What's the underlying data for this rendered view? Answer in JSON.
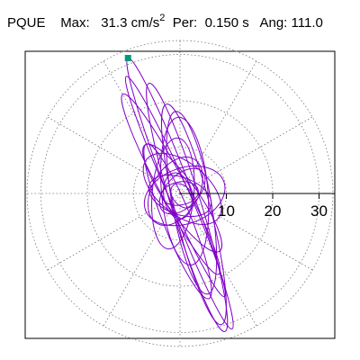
{
  "header": {
    "station": "PQUE",
    "max_label": "Max:",
    "max_value": "31.3 cm/s",
    "max_exp": "2",
    "per_label": "Per:",
    "per_value": "0.150 s",
    "ang_label": "Ang:",
    "ang_value": "111.0"
  },
  "chart_data": {
    "type": "polar-particle-motion",
    "title": "",
    "units": "cm/s²",
    "radial_ticks": [
      10,
      20,
      30
    ],
    "radial_max": 33,
    "rings": [
      10,
      20,
      30,
      33
    ],
    "spokes_every_deg": 30,
    "max_direction_marker": {
      "color": "#009a7a"
    },
    "series": [
      {
        "color": "#8000c8",
        "ellipses": [
          {
            "a": 31.3,
            "b": 2.6,
            "angle_deg": 111,
            "cx": 0,
            "cy": 0
          },
          {
            "a": 28.0,
            "b": 3.2,
            "angle_deg": 107,
            "cx": 1.5,
            "cy": -3.0
          },
          {
            "a": 26.0,
            "b": 2.2,
            "angle_deg": 114,
            "cx": -1.0,
            "cy": 1.5
          },
          {
            "a": 24.5,
            "b": 3.8,
            "angle_deg": 104,
            "cx": 3.0,
            "cy": -4.5
          },
          {
            "a": 22.0,
            "b": 2.8,
            "angle_deg": 118,
            "cx": -2.0,
            "cy": 2.0
          },
          {
            "a": 20.0,
            "b": 4.2,
            "angle_deg": 100,
            "cx": 2.5,
            "cy": -2.0
          },
          {
            "a": 18.0,
            "b": 3.0,
            "angle_deg": 112,
            "cx": -0.5,
            "cy": -6.0
          },
          {
            "a": 16.0,
            "b": 5.0,
            "angle_deg": 95,
            "cx": 1.0,
            "cy": 0.5
          },
          {
            "a": 14.0,
            "b": 3.5,
            "angle_deg": 125,
            "cx": 0.5,
            "cy": -1.0
          },
          {
            "a": 12.0,
            "b": 4.5,
            "angle_deg": 85,
            "cx": -1.5,
            "cy": 0.0
          },
          {
            "a": 10.0,
            "b": 5.5,
            "angle_deg": 140,
            "cx": 0.5,
            "cy": 1.0
          },
          {
            "a": 9.0,
            "b": 6.0,
            "angle_deg": 20,
            "cx": 1.0,
            "cy": -0.5
          },
          {
            "a": 8.0,
            "b": 5.0,
            "angle_deg": 60,
            "cx": -1.0,
            "cy": 0.5
          },
          {
            "a": 7.0,
            "b": 4.0,
            "angle_deg": 160,
            "cx": 0.0,
            "cy": -0.5
          },
          {
            "a": 6.0,
            "b": 3.5,
            "angle_deg": 45,
            "cx": 0.5,
            "cy": 0.5
          },
          {
            "a": 5.0,
            "b": 3.0,
            "angle_deg": 100,
            "cx": -0.5,
            "cy": -0.5
          },
          {
            "a": 4.0,
            "b": 2.5,
            "angle_deg": 10,
            "cx": 0.0,
            "cy": 0.0
          },
          {
            "a": 3.0,
            "b": 2.0,
            "angle_deg": 130,
            "cx": 0.5,
            "cy": -0.5
          }
        ]
      }
    ]
  }
}
